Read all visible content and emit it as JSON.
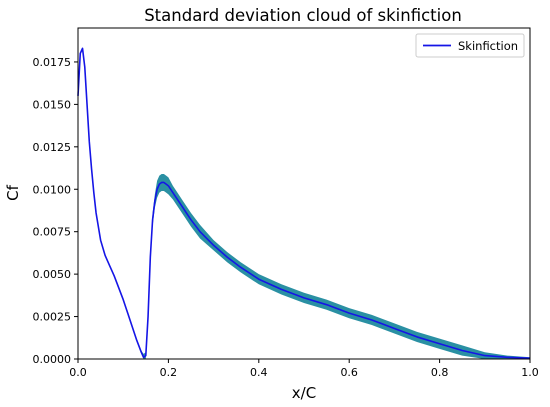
{
  "chart_data": {
    "type": "line",
    "title": "Standard deviation cloud of skinfiction",
    "xlabel": "x/C",
    "ylabel": "Cf",
    "xlim": [
      0.0,
      1.0
    ],
    "ylim": [
      0.0,
      0.0195
    ],
    "xticks": [
      0.0,
      0.2,
      0.4,
      0.6,
      0.8,
      1.0
    ],
    "xtick_labels": [
      "0.0",
      "0.2",
      "0.4",
      "0.6",
      "0.8",
      "1.0"
    ],
    "yticks": [
      0.0,
      0.0025,
      0.005,
      0.0075,
      0.01,
      0.0125,
      0.015,
      0.0175
    ],
    "ytick_labels": [
      "0.0000",
      "0.0025",
      "0.0050",
      "0.0075",
      "0.0100",
      "0.0125",
      "0.0150",
      "0.0175"
    ],
    "grid": false,
    "legend": {
      "position": "top-right",
      "entries": [
        "Skinfiction"
      ]
    },
    "series": [
      {
        "name": "Skinfiction",
        "color": "#1515e6",
        "band_color": "#1f8a9e",
        "x": [
          0.0,
          0.005,
          0.01,
          0.015,
          0.02,
          0.025,
          0.03,
          0.035,
          0.04,
          0.05,
          0.06,
          0.07,
          0.08,
          0.09,
          0.1,
          0.11,
          0.12,
          0.13,
          0.14,
          0.145,
          0.15,
          0.155,
          0.16,
          0.165,
          0.17,
          0.175,
          0.18,
          0.185,
          0.19,
          0.195,
          0.2,
          0.21,
          0.22,
          0.23,
          0.24,
          0.25,
          0.27,
          0.3,
          0.33,
          0.36,
          0.4,
          0.45,
          0.5,
          0.55,
          0.6,
          0.65,
          0.7,
          0.75,
          0.8,
          0.85,
          0.9,
          0.95,
          1.0
        ],
        "y": [
          0.0155,
          0.018,
          0.0183,
          0.0172,
          0.015,
          0.0128,
          0.0112,
          0.0098,
          0.0086,
          0.007,
          0.0061,
          0.0055,
          0.0049,
          0.0042,
          0.0035,
          0.0027,
          0.0019,
          0.0011,
          0.0004,
          0.0001,
          0.0002,
          0.0025,
          0.006,
          0.0082,
          0.0093,
          0.01,
          0.0103,
          0.0104,
          0.0104,
          0.0103,
          0.0102,
          0.0098,
          0.0094,
          0.009,
          0.0086,
          0.0082,
          0.0075,
          0.0067,
          0.006,
          0.0054,
          0.0047,
          0.0041,
          0.0036,
          0.0032,
          0.0027,
          0.0023,
          0.0018,
          0.0013,
          0.0009,
          0.0005,
          0.0002,
          0.0001,
          5e-05
        ],
        "std": [
          0.0,
          0.0,
          0.0,
          0.0,
          0.0,
          0.0,
          0.0,
          0.0,
          0.0,
          0.0,
          0.0,
          0.0,
          0.0,
          0.0,
          0.0,
          0.0,
          0.0,
          5e-05,
          0.0001,
          0.0002,
          0.0002,
          0.0002,
          0.0003,
          0.0004,
          0.0004,
          0.0005,
          0.0005,
          0.0005,
          0.0005,
          0.0005,
          0.0005,
          0.0004,
          0.0004,
          0.0004,
          0.0004,
          0.0004,
          0.0004,
          0.0003,
          0.0003,
          0.0003,
          0.0003,
          0.0003,
          0.0003,
          0.0003,
          0.0003,
          0.0003,
          0.0003,
          0.0003,
          0.0003,
          0.0003,
          0.0002,
          0.0001,
          5e-05
        ]
      }
    ]
  }
}
